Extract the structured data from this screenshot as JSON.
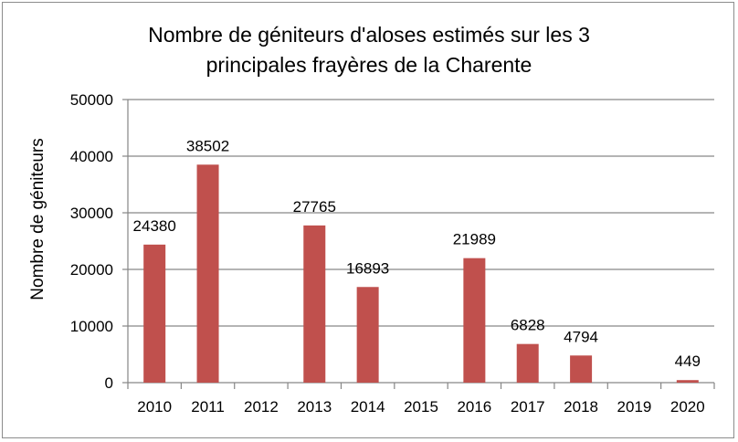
{
  "chart_data": {
    "type": "bar",
    "title_lines": [
      "Nombre de géniteurs d'aloses estimés sur les 3",
      "principales frayères de la Charente"
    ],
    "xlabel": "",
    "ylabel": "Nombre de géniteurs",
    "categories": [
      "2010",
      "2011",
      "2012",
      "2013",
      "2014",
      "2015",
      "2016",
      "2017",
      "2018",
      "2019",
      "2020"
    ],
    "values": [
      24380,
      38502,
      null,
      27765,
      16893,
      null,
      21989,
      6828,
      4794,
      null,
      449
    ],
    "data_labels": [
      "24380",
      "38502",
      "",
      "27765",
      "16893",
      "",
      "21989",
      "6828",
      "4794",
      "",
      "449"
    ],
    "ylim": [
      0,
      50000
    ],
    "yticks": [
      0,
      10000,
      20000,
      30000,
      40000,
      50000
    ],
    "grid": true,
    "legend": "none",
    "bar_color": "#c0504d",
    "grid_color": "#868686"
  }
}
